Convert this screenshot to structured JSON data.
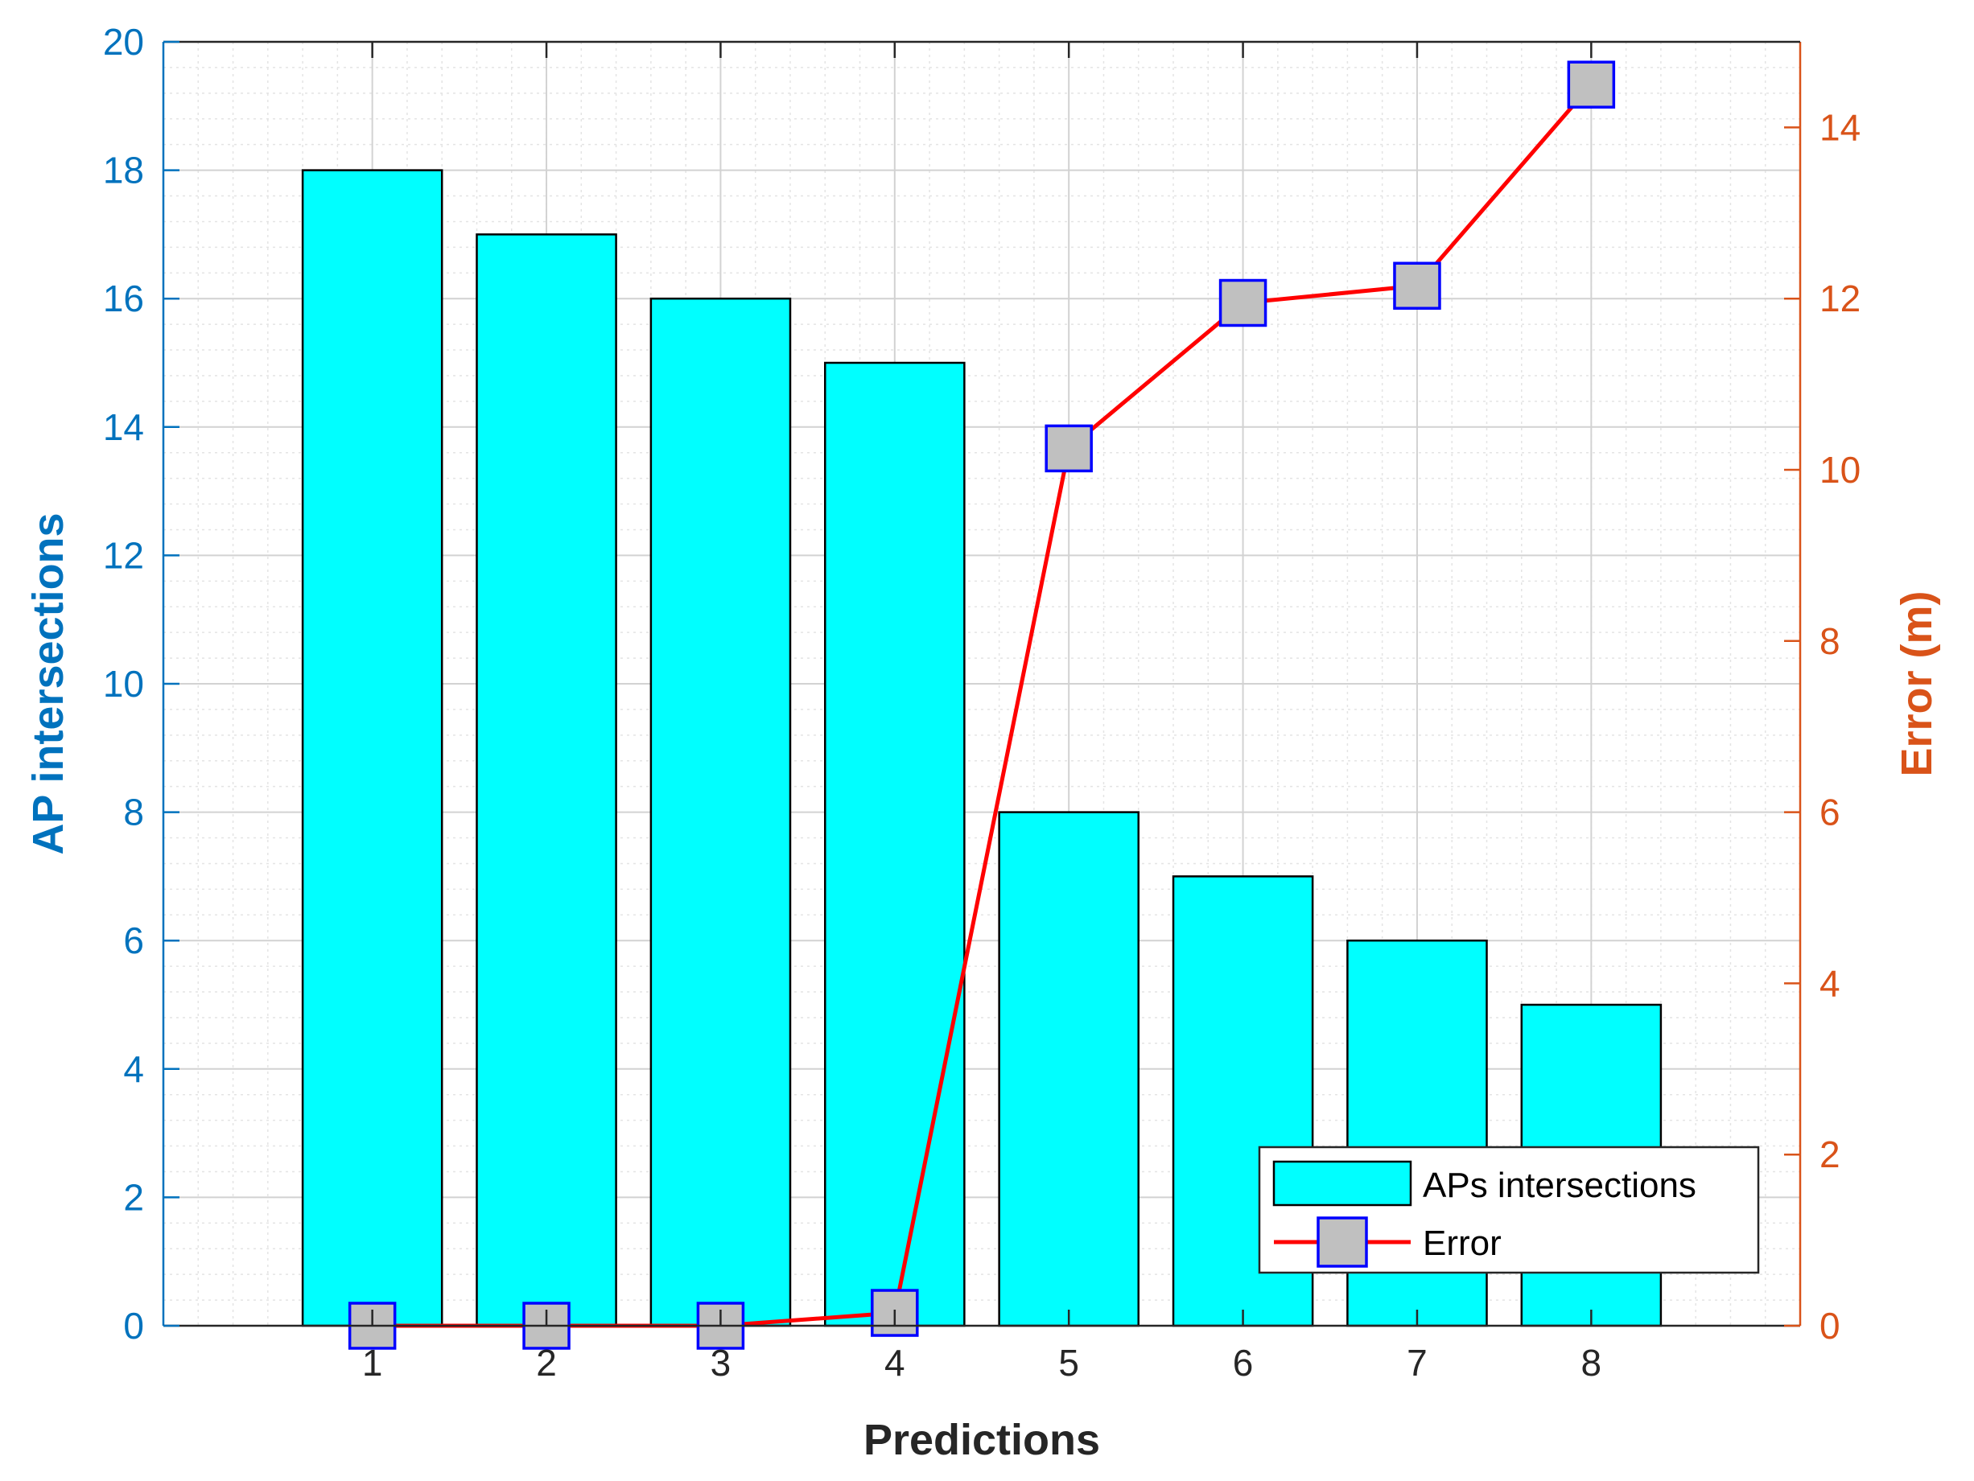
{
  "chart_data": {
    "type": "bar",
    "xlabel": "Predictions",
    "ylabel_left": "AP intersections",
    "ylabel_right": "Error (m)",
    "categories": [
      "1",
      "2",
      "3",
      "4",
      "5",
      "6",
      "7",
      "8"
    ],
    "x": [
      1,
      2,
      3,
      4,
      5,
      6,
      7,
      8
    ],
    "xlim": [
      -0.2,
      9.2
    ],
    "ylim_left": [
      0,
      20
    ],
    "ylim_right": [
      0,
      15
    ],
    "yticks_left": [
      0,
      2,
      4,
      6,
      8,
      10,
      12,
      14,
      16,
      18,
      20
    ],
    "yticks_right": [
      0,
      2,
      4,
      6,
      8,
      10,
      12,
      14
    ],
    "grid": true,
    "minor_grid": true,
    "legend_position": "bottom-right",
    "series": [
      {
        "name": "APs intersections",
        "type": "bar",
        "axis": "left",
        "values": [
          18,
          17,
          16,
          15,
          8,
          7,
          6,
          5
        ],
        "color": "#00FFFF"
      },
      {
        "name": "Error",
        "type": "line",
        "axis": "right",
        "values": [
          0,
          0,
          0,
          0.15,
          10.25,
          11.95,
          12.15,
          14.5
        ],
        "color": "#FF0000",
        "marker_fill": "#C0C0C0",
        "marker_edge": "#0000FF"
      }
    ],
    "colors": {
      "left_axis": "#0072BD",
      "right_axis": "#D95319",
      "text": "#262626"
    }
  }
}
